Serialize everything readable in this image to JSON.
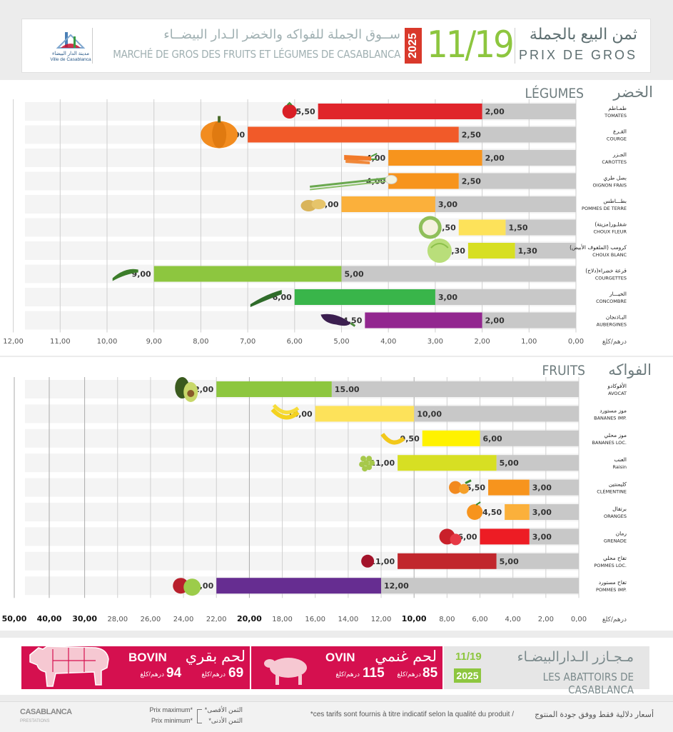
{
  "header": {
    "logo_city_ar": "مدينة الدار البيضاء",
    "logo_city_fr": "Ville de Casablanca",
    "market_ar": "ســوق الجملة للفواكه والخضر الـدار البيضــاء",
    "market_fr": "MARCHÉ DE GROS DES FRUITS ET LÉGUMES DE CASABLANCA",
    "year": "2025",
    "date": "11/19",
    "price_ar": "ثمن البيع بالجملة",
    "price_fr": "PRIX DE GROS",
    "colors": {
      "date_green": "#8dc63f",
      "year_red": "#d9392b",
      "accent_grey": "#7b8a8c"
    }
  },
  "legumes_title": {
    "fr": "LÉGUMES",
    "ar": "الخضر"
  },
  "fruits_title": {
    "fr": "FRUITS",
    "ar": "الفواكه"
  },
  "unit_label": "درهم/كلغ",
  "chart_data": [
    {
      "type": "bar",
      "orientation": "horizontal-right-to-left",
      "id": "legumes",
      "xlim": [
        0,
        12
      ],
      "ticks": [
        "12,00",
        "11,00",
        "10,00",
        "9,00",
        "8,00",
        "7,00",
        "6,00",
        "5,00",
        "4,00",
        "3,00",
        "2,00",
        "1,00",
        "0,00"
      ],
      "tick_values": [
        12,
        11,
        10,
        9,
        8,
        7,
        6,
        5,
        4,
        3,
        2,
        1,
        0
      ],
      "categories": [
        {
          "ar": "طمـاطم",
          "fr": "TOMATES",
          "min": 2.0,
          "max": 5.5,
          "min_label": "2,00",
          "max_label": "5,50",
          "color": "#e0252b",
          "icon": "tomato-icon"
        },
        {
          "ar": "القـرع",
          "fr": "COURGE",
          "min": 2.5,
          "max": 7.0,
          "min_label": "2,50",
          "max_label": "7.00",
          "color": "#f15a29",
          "icon": "pumpkin-icon"
        },
        {
          "ar": "الجـزر",
          "fr": "CAROTTES",
          "min": 2.0,
          "max": 4.0,
          "min_label": "2,00",
          "max_label": "4,00",
          "color": "#f7941d",
          "icon": "carrot-icon"
        },
        {
          "ar": "بصل طري",
          "fr": "OIGNON FRAIS",
          "min": 2.5,
          "max": 4.0,
          "min_label": "2,50",
          "max_label": "4,00",
          "color": "#f7941d",
          "icon": "spring-onion-icon"
        },
        {
          "ar": "بطـــاطس",
          "fr": "POMMES DE TERRE",
          "min": 3.0,
          "max": 5.0,
          "min_label": "3,00",
          "max_label": "5,00",
          "color": "#fbb03b",
          "icon": "potato-icon"
        },
        {
          "ar": "شفلـور(مزيتة)",
          "fr": "CHOUX FLEUR",
          "min": 1.5,
          "max": 2.5,
          "min_label": "1,50",
          "max_label": "2,50",
          "color": "#fde25a",
          "icon": "cauliflower-icon"
        },
        {
          "ar": "كرومب (الملفوف الأبيض)",
          "fr": "CHOUX BLANC",
          "min": 1.3,
          "max": 2.3,
          "min_label": "1,30",
          "max_label": "2,30",
          "color": "#d7df23",
          "icon": "cabbage-icon"
        },
        {
          "ar": "قرعة خضراء(دلاح)",
          "fr": "COURGETTES",
          "min": 5.0,
          "max": 9.0,
          "min_label": "5,00",
          "max_label": "9,00",
          "color": "#8dc63f",
          "icon": "zucchini-icon"
        },
        {
          "ar": "الخيـــار",
          "fr": "CONCOMBRE",
          "min": 3.0,
          "max": 6.0,
          "min_label": "3,00",
          "max_label": "6,00",
          "color": "#39b54a",
          "icon": "cucumber-icon"
        },
        {
          "ar": "البـاذنجان",
          "fr": "AUBERGINES",
          "min": 2.0,
          "max": 4.5,
          "min_label": "2,00",
          "max_label": "4,50",
          "color": "#92278f",
          "icon": "eggplant-icon"
        }
      ]
    },
    {
      "type": "bar",
      "orientation": "horizontal-right-to-left",
      "id": "fruits",
      "xlim": [
        0,
        50
      ],
      "ticks": [
        "50,00",
        "40,00",
        "30,00",
        "28,00",
        "26,00",
        "24,00",
        "22,00",
        "20,00",
        "18,00",
        "16,00",
        "14,00",
        "12,00",
        "10,00",
        "8,00",
        "6,00",
        "4,00",
        "2,00",
        "0,00"
      ],
      "tick_values": [
        50,
        40,
        30,
        28,
        26,
        24,
        22,
        20,
        18,
        16,
        14,
        12,
        10,
        8,
        6,
        4,
        2,
        0
      ],
      "categories": [
        {
          "ar": "الأفوكادو",
          "fr": "AVOCAT",
          "min": 15.0,
          "max": 22.0,
          "min_label": "15.00",
          "max_label": "22,00",
          "color": "#8dc63f",
          "icon": "avocado-icon"
        },
        {
          "ar": "موز مستورد",
          "fr": "BANANES IMP.",
          "min": 10.0,
          "max": 16.0,
          "min_label": "10,00",
          "max_label": "16,00",
          "color": "#fde25a",
          "icon": "banana-bunch-icon"
        },
        {
          "ar": "موز محلي",
          "fr": "BANANES LOC.",
          "min": 6.0,
          "max": 9.5,
          "min_label": "6,00",
          "max_label": "9,50",
          "color": "#fff200",
          "icon": "banana-icon"
        },
        {
          "ar": "العنب",
          "fr": "Raisin",
          "min": 5.0,
          "max": 11.0,
          "min_label": "5,00",
          "max_label": "11,00",
          "color": "#d7df23",
          "icon": "grape-icon"
        },
        {
          "ar": "كليمنتين",
          "fr": "CLÉMENTINE",
          "min": 3.0,
          "max": 5.5,
          "min_label": "3,00",
          "max_label": "5,50",
          "color": "#f7941d",
          "icon": "clementine-icon"
        },
        {
          "ar": "برتقال",
          "fr": "ORANGES",
          "min": 3.0,
          "max": 4.5,
          "min_label": "3,00",
          "max_label": "4,50",
          "color": "#fbb03b",
          "icon": "orange-icon"
        },
        {
          "ar": "رمان",
          "fr": "GRENADE",
          "min": 3.0,
          "max": 6.0,
          "min_label": "3,00",
          "max_label": "6,00",
          "color": "#ed1c24",
          "icon": "pomegranate-icon"
        },
        {
          "ar": "تفاح محلي",
          "fr": "POMMES LOC.",
          "min": 5.0,
          "max": 11.0,
          "min_label": "5,00",
          "max_label": "11,00",
          "color": "#c1272d",
          "icon": "apple-red-icon"
        },
        {
          "ar": "تفاح مستورد",
          "fr": "POMMES IMP.",
          "min": 12.0,
          "max": 22.0,
          "min_label": "12,00",
          "max_label": "22,00",
          "color": "#662d91",
          "icon": "apple-pair-icon"
        }
      ]
    }
  ],
  "meat": {
    "colors": {
      "band": "#d5104f",
      "panel_grey": "#e6e6e6",
      "green": "#8dc63f"
    },
    "bovin": {
      "fr": "BOVIN",
      "ar": "لحم بقري",
      "min": "69",
      "max": "94",
      "unit": "درهم/كلغ"
    },
    "ovin": {
      "fr": "OVIN",
      "ar": "لحم غنمي",
      "min": "85",
      "max": "115",
      "unit": "درهم/كلغ"
    },
    "abattoir": {
      "date": "11/19",
      "year": "2025",
      "ar": "مـجـازر الـدارالبيضـاء",
      "fr": "LES ABATTOIRS DE CASABLANCA"
    }
  },
  "footer": {
    "logo": "CASABLANCA",
    "logo_sub": "PRESTATIONS",
    "legend_max_fr": "Prix maximum*",
    "legend_min_fr": "Prix minimum*",
    "legend_max_ar": "*الثمن الأقصى",
    "legend_min_ar": "*الثمن الأدنى",
    "note_ar": "أسعار دلالية فقط ووفق جودة المنتوج",
    "note_fr": "*ces tarifs sont fournis à titre indicatif selon la qualité du produit /"
  }
}
